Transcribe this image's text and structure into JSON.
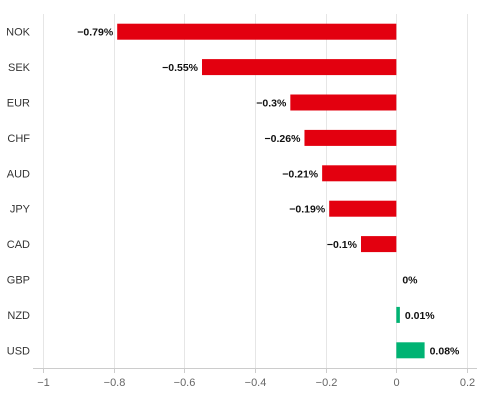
{
  "chart_data": {
    "type": "bar",
    "orientation": "horizontal",
    "title": "",
    "xlabel": "",
    "ylabel": "",
    "categories": [
      "NOK",
      "SEK",
      "EUR",
      "CHF",
      "AUD",
      "JPY",
      "CAD",
      "GBP",
      "NZD",
      "USD"
    ],
    "values": [
      -0.79,
      -0.55,
      -0.3,
      -0.26,
      -0.21,
      -0.19,
      -0.1,
      0,
      0.01,
      0.08
    ],
    "value_labels": [
      "−0.79%",
      "−0.55%",
      "−0.3%",
      "−0.26%",
      "−0.21%",
      "−0.19%",
      "−0.1%",
      "0%",
      "0.01%",
      "0.08%"
    ],
    "xlim": [
      -1,
      0.2
    ],
    "xticks": [
      -1,
      -0.8,
      -0.6,
      -0.4,
      -0.2,
      0,
      0.2
    ],
    "xtick_labels": [
      "−1",
      "−0.8",
      "−0.6",
      "−0.4",
      "−0.2",
      "0",
      "0.2"
    ],
    "grid": "vertical",
    "legend": "none",
    "colors": {
      "negative": "#e3000f",
      "positive": "#00b373",
      "gridline": "#e6e6e6",
      "axis": "#cccccc"
    }
  }
}
